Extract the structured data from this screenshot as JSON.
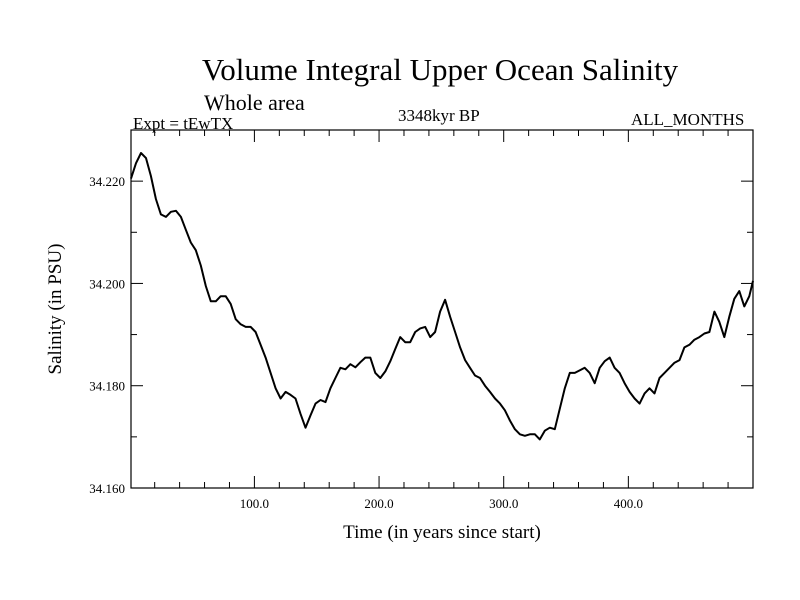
{
  "header": {
    "title": "Volume Integral Upper Ocean Salinity",
    "subtitle": "Whole area",
    "experiment": "Expt = tEwTX",
    "period": "3348kyr BP",
    "months": "ALL_MONTHS"
  },
  "chart_data": {
    "type": "line",
    "title": "Volume Integral Upper Ocean Salinity",
    "xlabel": "Time (in years since start)",
    "ylabel": "Salinity (in PSU)",
    "xlim": [
      1,
      500
    ],
    "ylim": [
      34.16,
      34.23
    ],
    "x_ticks": [
      100,
      200,
      300,
      400
    ],
    "x_tick_labels": [
      "100.0",
      "200.0",
      "300.0",
      "400.0"
    ],
    "y_ticks": [
      34.16,
      34.18,
      34.2,
      34.22
    ],
    "y_tick_labels": [
      "34.160",
      "34.180",
      "34.200",
      "34.220"
    ],
    "grid": false,
    "series": [
      {
        "name": "Salinity",
        "color": "#000000",
        "x": [
          1,
          5,
          9,
          13,
          17,
          21,
          25,
          29,
          33,
          37,
          41,
          45,
          49,
          53,
          57,
          61,
          65,
          69,
          73,
          77,
          81,
          85,
          89,
          93,
          97,
          101,
          105,
          109,
          113,
          117,
          121,
          125,
          129,
          133,
          137,
          141,
          145,
          149,
          153,
          157,
          161,
          165,
          169,
          173,
          177,
          181,
          185,
          189,
          193,
          197,
          201,
          205,
          209,
          213,
          217,
          221,
          225,
          229,
          233,
          237,
          241,
          245,
          249,
          253,
          257,
          261,
          265,
          269,
          273,
          277,
          281,
          285,
          289,
          293,
          297,
          301,
          305,
          309,
          313,
          317,
          321,
          325,
          329,
          333,
          337,
          341,
          345,
          349,
          353,
          357,
          361,
          365,
          369,
          373,
          377,
          381,
          385,
          389,
          393,
          397,
          401,
          405,
          409,
          413,
          417,
          421,
          425,
          429,
          433,
          437,
          441,
          445,
          449,
          453,
          457,
          461,
          465,
          469,
          473,
          477,
          481,
          485,
          489,
          493,
          497,
          500
        ],
        "values": [
          34.2205,
          34.2235,
          34.2255,
          34.2245,
          34.221,
          34.2165,
          34.2135,
          34.213,
          34.214,
          34.2142,
          34.213,
          34.2105,
          34.208,
          34.2065,
          34.2035,
          34.1995,
          34.1965,
          34.1965,
          34.1975,
          34.1975,
          34.196,
          34.193,
          34.192,
          34.1915,
          34.1915,
          34.1905,
          34.188,
          34.1855,
          34.1825,
          34.1795,
          34.1775,
          34.1788,
          34.1782,
          34.1775,
          34.1745,
          34.1718,
          34.1742,
          34.1765,
          34.1772,
          34.1768,
          34.1795,
          34.1815,
          34.1835,
          34.1832,
          34.1842,
          34.1836,
          34.1846,
          34.1855,
          34.1855,
          34.1825,
          34.1815,
          34.1828,
          34.1848,
          34.1872,
          34.1895,
          34.1885,
          34.1885,
          34.1905,
          34.1912,
          34.1915,
          34.1895,
          34.1905,
          34.1945,
          34.1968,
          34.1935,
          34.1905,
          34.1875,
          34.185,
          34.1835,
          34.182,
          34.1815,
          34.18,
          34.1788,
          34.1775,
          34.1765,
          34.1752,
          34.1732,
          34.1715,
          34.1705,
          34.1702,
          34.1705,
          34.1705,
          34.1695,
          34.1712,
          34.1718,
          34.1715,
          34.1755,
          34.1795,
          34.1825,
          34.1825,
          34.183,
          34.1835,
          34.1825,
          34.1805,
          34.1835,
          34.1848,
          34.1855,
          34.1835,
          34.1825,
          34.1805,
          34.1788,
          34.1775,
          34.1765,
          34.1785,
          34.1795,
          34.1785,
          34.1815,
          34.1825,
          34.1835,
          34.1845,
          34.185,
          34.1875,
          34.188,
          34.189,
          34.1895,
          34.1902,
          34.1905,
          34.1945,
          34.1925,
          34.1895,
          34.1935,
          34.197,
          34.1985,
          34.1955,
          34.1975,
          34.2005
        ]
      }
    ]
  }
}
